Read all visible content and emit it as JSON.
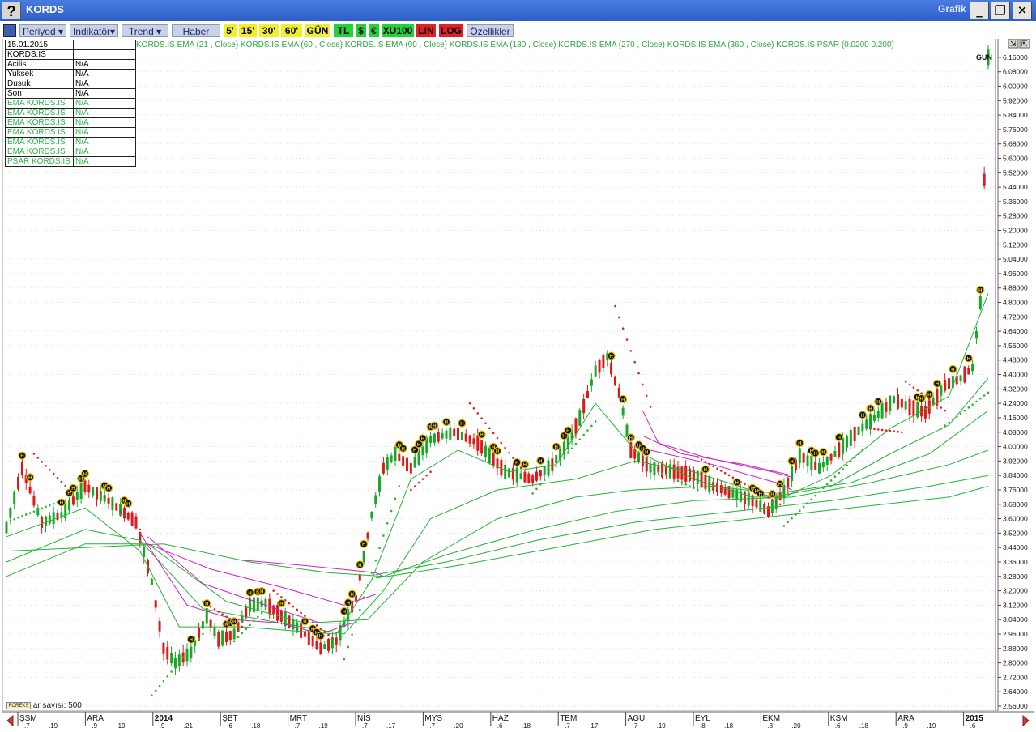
{
  "window": {
    "title": "KORDS",
    "right_label": "Grafik",
    "help_glyph": "?",
    "minimize_glyph": "_",
    "restore_glyph": "❐",
    "close_glyph": "✕"
  },
  "toolbar": {
    "periyod": "Periyod",
    "indikator": "Indikatör",
    "trend": "Trend",
    "haber": "Haber",
    "p5": "5'",
    "p15": "15'",
    "p30": "30'",
    "p60": "60'",
    "gun": "GÜN",
    "tl": "TL",
    "usd": "$",
    "eur": "€",
    "xu100": "XU100",
    "lin": "LIN",
    "log": "LOG",
    "ozellikler": "Özellikler"
  },
  "info_panel": {
    "date": "15.01.2015",
    "symbol": "KORDS.IS",
    "rows": [
      {
        "label": " Acilis",
        "value": "N/A"
      },
      {
        "label": " Yuksek",
        "value": "N/A"
      },
      {
        "label": " Dusuk",
        "value": "N/A"
      },
      {
        "label": " Son",
        "value": "N/A"
      },
      {
        "label": "EMA KORDS.IS",
        "value": "N/A"
      },
      {
        "label": "EMA KORDS.IS",
        "value": "N/A"
      },
      {
        "label": "EMA KORDS.IS",
        "value": "N/A"
      },
      {
        "label": "EMA KORDS.IS",
        "value": "N/A"
      },
      {
        "label": "EMA KORDS.IS",
        "value": "N/A"
      },
      {
        "label": "EMA KORDS.IS",
        "value": "N/A"
      },
      {
        "label": "PSAR KORDS.IS",
        "value": "N/A"
      }
    ]
  },
  "indicator_legend": "KORDS.IS EMA (21 , Close)  KORDS.IS EMA (60 , Close)  KORDS.IS EMA (90 , Close)  KORDS.IS EMA (180 , Close)  KORDS.IS EMA (270 , Close)  KORDS.IS EMA (360 , Close)  KORDS.IS PSAR (0.0200  0.200)",
  "bar_count_label": "ar sayısı: 500",
  "logo_text": "FOREKS",
  "current_label": "GUN",
  "colors": {
    "up": "#18a828",
    "down": "#e01818",
    "ema": "#22b433",
    "ema_magenta": "#d020c8",
    "psar_up": "#30b030",
    "psar_down": "#e02020",
    "cursor": "#cc30cc"
  },
  "chart_data": {
    "type": "candlestick",
    "ylim": [
      2.56,
      6.2
    ],
    "y_ticks": [
      "6.16000",
      "6.08000",
      "6.00000",
      "5.92000",
      "5.84000",
      "5.76000",
      "5.68000",
      "5.60000",
      "5.52000",
      "5.44000",
      "5.36000",
      "5.28000",
      "5.20000",
      "5.12000",
      "5.04000",
      "4.96000",
      "4.88000",
      "4.80000",
      "4.72000",
      "4.64000",
      "4.56000",
      "4.48000",
      "4.40000",
      "4.32000",
      "4.24000",
      "4.16000",
      "4.08000",
      "4.00000",
      "3.92000",
      "3.84000",
      "3.76000",
      "3.68000",
      "3.60000",
      "3.52000",
      "3.44000",
      "3.36000",
      "3.28000",
      "3.20000",
      "3.12000",
      "3.04000",
      "2.96000",
      "2.88000",
      "2.80000",
      "2.72000",
      "2.64000",
      "2.56000"
    ],
    "x_months": [
      {
        "label": "ŞSM",
        "days": [
          ".7",
          ".19"
        ]
      },
      {
        "label": "ARA",
        "days": [
          ".9",
          ".19"
        ]
      },
      {
        "label": "2014",
        "days": [
          ".9",
          ".21"
        ]
      },
      {
        "label": "ŞBT",
        "days": [
          ".6",
          ".18"
        ]
      },
      {
        "label": "MRT",
        "days": [
          ".7",
          ".19"
        ]
      },
      {
        "label": "NİS",
        "days": [
          ".7",
          ".17"
        ]
      },
      {
        "label": "MYS",
        "days": [
          ".7",
          ".20"
        ]
      },
      {
        "label": "HAZ",
        "days": [
          ".6",
          ".18"
        ]
      },
      {
        "label": "TEM",
        "days": [
          ".7",
          ".17"
        ]
      },
      {
        "label": "AGU",
        "days": [
          ".7",
          ".19"
        ]
      },
      {
        "label": "EYL",
        "days": [
          ".8",
          ".18"
        ]
      },
      {
        "label": "EKM",
        "days": [
          ".8",
          ".20"
        ]
      },
      {
        "label": "KSM",
        "days": [
          ".6",
          ".18"
        ]
      },
      {
        "label": "ARA",
        "days": [
          ".9",
          ".19"
        ]
      },
      {
        "label": "2015",
        "days": [
          ".6",
          ""
        ]
      }
    ],
    "price_path": [
      [
        0,
        3.55
      ],
      [
        4,
        3.88
      ],
      [
        9,
        3.58
      ],
      [
        14,
        3.62
      ],
      [
        20,
        3.78
      ],
      [
        26,
        3.7
      ],
      [
        33,
        3.58
      ],
      [
        37,
        3.25
      ],
      [
        40,
        2.88
      ],
      [
        43,
        2.8
      ],
      [
        47,
        2.86
      ],
      [
        51,
        3.06
      ],
      [
        54,
        2.93
      ],
      [
        58,
        2.96
      ],
      [
        62,
        3.12
      ],
      [
        66,
        3.13
      ],
      [
        70,
        3.06
      ],
      [
        75,
        2.98
      ],
      [
        80,
        2.88
      ],
      [
        84,
        2.92
      ],
      [
        89,
        3.16
      ],
      [
        93,
        3.62
      ],
      [
        96,
        3.88
      ],
      [
        99,
        3.96
      ],
      [
        103,
        3.88
      ],
      [
        108,
        4.04
      ],
      [
        114,
        4.08
      ],
      [
        120,
        4.02
      ],
      [
        127,
        3.86
      ],
      [
        134,
        3.82
      ],
      [
        139,
        3.9
      ],
      [
        143,
        4.02
      ],
      [
        146,
        4.16
      ],
      [
        150,
        4.42
      ],
      [
        153,
        4.5
      ],
      [
        156,
        4.3
      ],
      [
        159,
        3.98
      ],
      [
        164,
        3.88
      ],
      [
        170,
        3.86
      ],
      [
        175,
        3.84
      ],
      [
        180,
        3.78
      ],
      [
        185,
        3.74
      ],
      [
        190,
        3.7
      ],
      [
        194,
        3.64
      ],
      [
        198,
        3.75
      ],
      [
        202,
        3.95
      ],
      [
        207,
        3.88
      ],
      [
        211,
        3.96
      ],
      [
        216,
        4.07
      ],
      [
        221,
        4.16
      ],
      [
        226,
        4.26
      ],
      [
        230,
        4.22
      ],
      [
        234,
        4.19
      ],
      [
        239,
        4.34
      ],
      [
        243,
        4.38
      ],
      [
        246,
        4.44
      ],
      [
        248,
        4.8
      ],
      [
        250,
        6.16
      ]
    ],
    "ema_lines": [
      {
        "name": "EMA 21",
        "points": [
          [
            0,
            3.5
          ],
          [
            20,
            3.66
          ],
          [
            34,
            3.42
          ],
          [
            44,
            3.0
          ],
          [
            60,
            3.0
          ],
          [
            84,
            2.96
          ],
          [
            93,
            3.26
          ],
          [
            103,
            3.82
          ],
          [
            115,
            3.98
          ],
          [
            128,
            3.86
          ],
          [
            140,
            3.9
          ],
          [
            150,
            4.24
          ],
          [
            160,
            3.98
          ],
          [
            175,
            3.82
          ],
          [
            190,
            3.72
          ],
          [
            198,
            3.72
          ],
          [
            210,
            3.84
          ],
          [
            225,
            4.1
          ],
          [
            240,
            4.28
          ],
          [
            250,
            4.85
          ]
        ]
      },
      {
        "name": "EMA 60",
        "points": [
          [
            0,
            3.36
          ],
          [
            20,
            3.54
          ],
          [
            34,
            3.48
          ],
          [
            50,
            3.1
          ],
          [
            70,
            3.02
          ],
          [
            86,
            2.96
          ],
          [
            96,
            3.2
          ],
          [
            108,
            3.6
          ],
          [
            125,
            3.76
          ],
          [
            145,
            3.82
          ],
          [
            160,
            3.92
          ],
          [
            175,
            3.86
          ],
          [
            195,
            3.72
          ],
          [
            210,
            3.78
          ],
          [
            225,
            3.96
          ],
          [
            240,
            4.12
          ],
          [
            250,
            4.38
          ]
        ]
      },
      {
        "name": "EMA 90",
        "points": [
          [
            0,
            3.28
          ],
          [
            20,
            3.46
          ],
          [
            36,
            3.46
          ],
          [
            56,
            3.14
          ],
          [
            76,
            3.02
          ],
          [
            92,
            3.04
          ],
          [
            106,
            3.36
          ],
          [
            125,
            3.6
          ],
          [
            145,
            3.72
          ],
          [
            160,
            3.76
          ],
          [
            180,
            3.78
          ],
          [
            196,
            3.74
          ],
          [
            215,
            3.8
          ],
          [
            235,
            3.96
          ],
          [
            250,
            4.2
          ]
        ]
      },
      {
        "name": "EMA 180",
        "points": [
          [
            0,
            3.42
          ],
          [
            20,
            3.44
          ],
          [
            40,
            3.46
          ],
          [
            62,
            3.36
          ],
          [
            82,
            3.3
          ],
          [
            96,
            3.28
          ],
          [
            112,
            3.4
          ],
          [
            135,
            3.54
          ],
          [
            155,
            3.64
          ],
          [
            175,
            3.7
          ],
          [
            200,
            3.72
          ],
          [
            220,
            3.8
          ],
          [
            240,
            3.9
          ],
          [
            250,
            3.98
          ]
        ]
      },
      {
        "name": "EMA 270",
        "points": [
          [
            94,
            3.29
          ],
          [
            112,
            3.36
          ],
          [
            135,
            3.48
          ],
          [
            160,
            3.58
          ],
          [
            185,
            3.64
          ],
          [
            210,
            3.7
          ],
          [
            235,
            3.78
          ],
          [
            250,
            3.84
          ]
        ]
      },
      {
        "name": "EMA 360",
        "points": [
          [
            94,
            3.27
          ],
          [
            115,
            3.34
          ],
          [
            140,
            3.44
          ],
          [
            165,
            3.54
          ],
          [
            190,
            3.6
          ],
          [
            215,
            3.66
          ],
          [
            240,
            3.72
          ],
          [
            250,
            3.78
          ]
        ]
      }
    ],
    "ema_magenta": [
      {
        "points": [
          [
            34,
            3.52
          ],
          [
            46,
            3.12
          ],
          [
            58,
            3.04
          ],
          [
            70,
            3.02
          ],
          [
            80,
            2.96
          ],
          [
            88,
            3.02
          ]
        ]
      },
      {
        "points": [
          [
            36,
            3.5
          ],
          [
            50,
            3.24
          ],
          [
            66,
            3.12
          ],
          [
            80,
            3.02
          ],
          [
            90,
            3.02
          ]
        ]
      },
      {
        "points": [
          [
            36,
            3.46
          ],
          [
            52,
            3.32
          ],
          [
            70,
            3.22
          ],
          [
            86,
            3.12
          ],
          [
            94,
            3.18
          ]
        ]
      },
      {
        "points": [
          [
            60,
            3.37
          ],
          [
            76,
            3.34
          ],
          [
            94,
            3.3
          ],
          [
            96,
            3.28
          ]
        ]
      },
      {
        "points": [
          [
            162,
            4.2
          ],
          [
            166,
            4.02
          ],
          [
            178,
            3.94
          ],
          [
            195,
            3.86
          ],
          [
            200,
            3.83
          ]
        ]
      },
      {
        "points": [
          [
            162,
            4.06
          ],
          [
            172,
            3.96
          ],
          [
            188,
            3.9
          ],
          [
            200,
            3.84
          ]
        ]
      },
      {
        "points": [
          [
            164,
            3.98
          ],
          [
            180,
            3.9
          ],
          [
            196,
            3.8
          ],
          [
            200,
            3.76
          ]
        ]
      }
    ],
    "psar_segments": [
      {
        "dir": "down",
        "from": [
          7,
          3.96
        ],
        "to": [
          16,
          3.76
        ]
      },
      {
        "dir": "up",
        "from": [
          0,
          3.58
        ],
        "to": [
          14,
          3.7
        ]
      },
      {
        "dir": "down",
        "from": [
          23,
          3.76
        ],
        "to": [
          34,
          3.54
        ]
      },
      {
        "dir": "up",
        "from": [
          37,
          2.62
        ],
        "to": [
          50,
          2.96
        ]
      },
      {
        "dir": "down",
        "from": [
          50,
          3.14
        ],
        "to": [
          60,
          3.0
        ]
      },
      {
        "dir": "up",
        "from": [
          58,
          2.92
        ],
        "to": [
          66,
          3.1
        ]
      },
      {
        "dir": "down",
        "from": [
          68,
          3.2
        ],
        "to": [
          84,
          2.92
        ]
      },
      {
        "dir": "up",
        "from": [
          86,
          2.82
        ],
        "to": [
          100,
          3.78
        ]
      },
      {
        "dir": "down",
        "from": [
          103,
          3.76
        ],
        "to": [
          108,
          3.86
        ]
      },
      {
        "dir": "down",
        "from": [
          118,
          4.24
        ],
        "to": [
          134,
          3.8
        ]
      },
      {
        "dir": "up",
        "from": [
          134,
          3.74
        ],
        "to": [
          150,
          4.14
        ]
      },
      {
        "dir": "down",
        "from": [
          155,
          4.78
        ],
        "to": [
          164,
          4.22
        ]
      },
      {
        "dir": "up",
        "from": [
          166,
          3.86
        ],
        "to": [
          176,
          3.76
        ]
      },
      {
        "dir": "down",
        "from": [
          176,
          3.94
        ],
        "to": [
          197,
          3.68
        ]
      },
      {
        "dir": "up",
        "from": [
          198,
          3.56
        ],
        "to": [
          218,
          3.98
        ]
      },
      {
        "dir": "down",
        "from": [
          220,
          4.1
        ],
        "to": [
          228,
          4.08
        ]
      },
      {
        "dir": "down",
        "from": [
          229,
          4.36
        ],
        "to": [
          239,
          4.2
        ]
      },
      {
        "dir": "up",
        "from": [
          238,
          4.1
        ],
        "to": [
          250,
          4.3
        ]
      }
    ],
    "news_markers": [
      4,
      6,
      14,
      16,
      17,
      19,
      20,
      25,
      26,
      30,
      31,
      47,
      51,
      56,
      57,
      58,
      62,
      64,
      65,
      70,
      76,
      78,
      79,
      80,
      86,
      87,
      88,
      90,
      91,
      100,
      101,
      104,
      105,
      106,
      108,
      109,
      112,
      116,
      121,
      124,
      125,
      130,
      132,
      136,
      140,
      142,
      143,
      154,
      157,
      159,
      161,
      162,
      163,
      178,
      186,
      190,
      191,
      192,
      195,
      197,
      200,
      202,
      205,
      206,
      208,
      212,
      218,
      220,
      222,
      232,
      233,
      235,
      237,
      241,
      245,
      248
    ]
  }
}
